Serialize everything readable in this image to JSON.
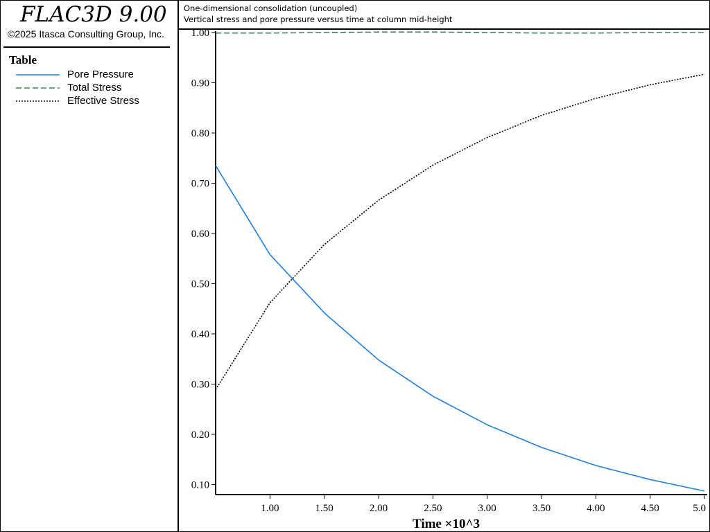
{
  "app": {
    "title": "FLAC3D 9.00",
    "copyright": "©2025 Itasca Consulting Group, Inc."
  },
  "legend": {
    "heading": "Table",
    "items": [
      {
        "label": "Pore Pressure",
        "color": "#1e7fe0",
        "style": "solid"
      },
      {
        "label": "Total Stress",
        "color": "#2e8b57",
        "style": "dashed"
      },
      {
        "label": "Effective Stress",
        "color": "#000000",
        "style": "dotted"
      }
    ]
  },
  "header": {
    "line1": "One-dimensional consolidation (uncoupled)",
    "line2": "Vertical stress and pore pressure versus time at column mid-height"
  },
  "chart_data": {
    "type": "line",
    "xlabel": "Time ×10^3",
    "ylabel": "",
    "xlim": [
      0.5,
      5.0
    ],
    "ylim": [
      0.08,
      1.0
    ],
    "xticks": [
      1.0,
      1.5,
      2.0,
      2.5,
      3.0,
      3.5,
      4.0,
      4.5,
      5.0
    ],
    "xtick_labels": [
      "1.00",
      "1.50",
      "2.00",
      "2.50",
      "3.00",
      "3.50",
      "4.00",
      "4.50",
      "5.0"
    ],
    "yticks": [
      0.1,
      0.2,
      0.3,
      0.4,
      0.5,
      0.6,
      0.7,
      0.8,
      0.9,
      1.0
    ],
    "ytick_labels": [
      "0.10",
      "0.20",
      "0.30",
      "0.40",
      "0.50",
      "0.60",
      "0.70",
      "0.80",
      "0.90",
      "1.00"
    ],
    "grid": false,
    "legend_position": "left-panel",
    "series": [
      {
        "name": "Pore Pressure",
        "color": "#1e7fe0",
        "style": "solid",
        "x": [
          0.5,
          1.0,
          1.5,
          2.0,
          2.5,
          3.0,
          3.5,
          4.0,
          4.5,
          5.0
        ],
        "y": [
          0.735,
          0.558,
          0.442,
          0.348,
          0.276,
          0.219,
          0.174,
          0.138,
          0.11,
          0.087
        ]
      },
      {
        "name": "Total Stress",
        "color": "#2e8b57",
        "style": "dashed",
        "x": [
          0.5,
          1.0,
          1.5,
          2.0,
          2.5,
          3.0,
          3.5,
          4.0,
          4.5,
          5.0
        ],
        "y": [
          0.999,
          0.999,
          1.0,
          1.001,
          1.001,
          1.0,
          0.999,
          0.999,
          1.0,
          1.0
        ]
      },
      {
        "name": "Effective Stress",
        "color": "#000000",
        "style": "dotted",
        "x": [
          0.5,
          1.0,
          1.5,
          2.0,
          2.5,
          3.0,
          3.5,
          4.0,
          4.5,
          5.0
        ],
        "y": [
          0.289,
          0.462,
          0.578,
          0.666,
          0.736,
          0.791,
          0.835,
          0.869,
          0.896,
          0.917
        ]
      }
    ]
  }
}
